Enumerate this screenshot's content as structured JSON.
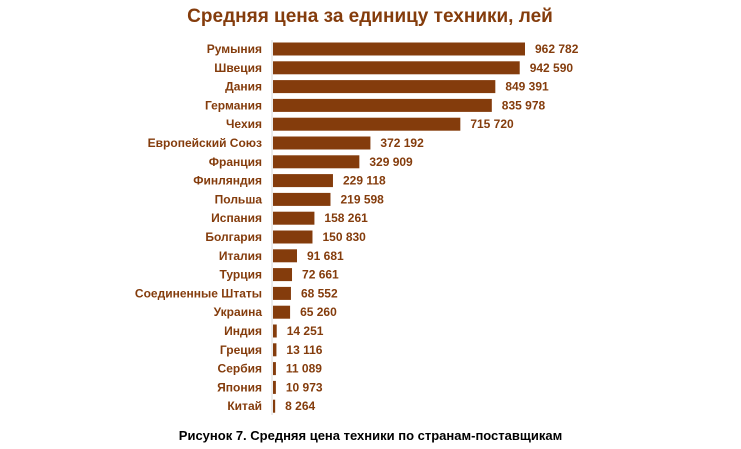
{
  "chart_data": {
    "type": "bar",
    "orientation": "horizontal",
    "title": "Средняя цена за единицу техники, лей",
    "caption": "Рисунок 7. Средняя цена техники по странам-поставщикам",
    "categories": [
      "Румыния",
      "Швеция",
      "Дания",
      "Германия",
      "Чехия",
      "Европейский Союз",
      "Франция",
      "Финляндия",
      "Польша",
      "Испания",
      "Болгария",
      "Италия",
      "Турция",
      "Соединенные Штаты",
      "Украина",
      "Индия",
      "Греция",
      "Сербия",
      "Япония",
      "Китай"
    ],
    "values": [
      962782,
      942590,
      849391,
      835978,
      715720,
      372192,
      329909,
      229118,
      219598,
      158261,
      150830,
      91681,
      72661,
      68552,
      65260,
      14251,
      13116,
      11089,
      10973,
      8264
    ],
    "value_labels": [
      "962 782",
      "942 590",
      "849 391",
      "835 978",
      "715 720",
      "372 192",
      "329 909",
      "229 118",
      "219 598",
      "158 261",
      "150 830",
      "91 681",
      "72 661",
      "68 552",
      "65 260",
      "14 251",
      "13 116",
      "11 089",
      "10 973",
      "8 264"
    ],
    "xlim": [
      0,
      962782
    ],
    "grid": false,
    "legend": "none",
    "colors": {
      "bar": "#843c0c",
      "text": "#843c0c",
      "caption": "#000000"
    }
  }
}
